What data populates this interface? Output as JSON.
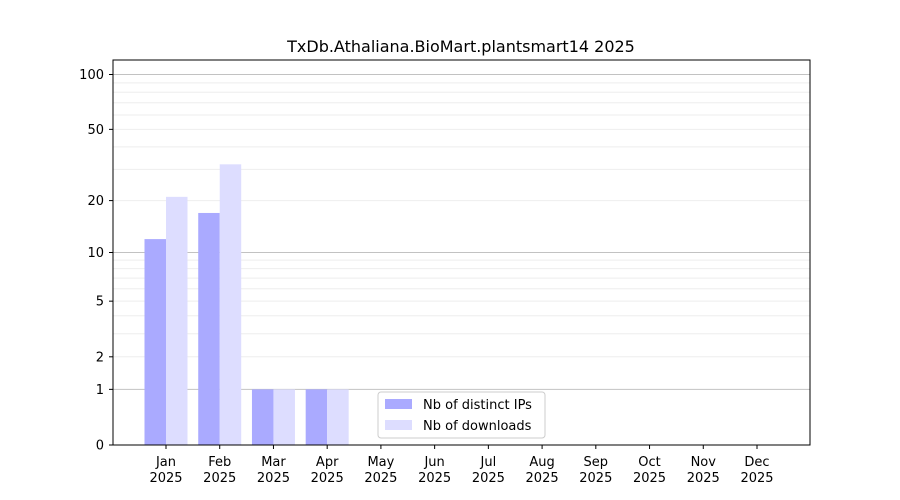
{
  "chart_data": {
    "type": "bar",
    "title": "TxDb.Athaliana.BioMart.plantsmart14 2025",
    "xlabel": "",
    "ylabel": "",
    "yscale": "log1p",
    "ylim": [
      0,
      120
    ],
    "yticks": [
      0,
      1,
      2,
      5,
      10,
      20,
      50,
      100
    ],
    "grid": true,
    "legend_position": "lower-center",
    "categories": [
      "Jan\n2025",
      "Feb\n2025",
      "Mar\n2025",
      "Apr\n2025",
      "May\n2025",
      "Jun\n2025",
      "Jul\n2025",
      "Aug\n2025",
      "Sep\n2025",
      "Oct\n2025",
      "Nov\n2025",
      "Dec\n2025"
    ],
    "series": [
      {
        "name": "Nb of distinct IPs",
        "color": "#aaaaff",
        "values": [
          12,
          17,
          1,
          1,
          0,
          0,
          0,
          0,
          0,
          0,
          0,
          0
        ]
      },
      {
        "name": "Nb of downloads",
        "color": "#ddddff",
        "values": [
          21,
          32,
          1,
          1,
          0,
          0,
          0,
          0,
          0,
          0,
          0,
          0
        ]
      }
    ]
  }
}
